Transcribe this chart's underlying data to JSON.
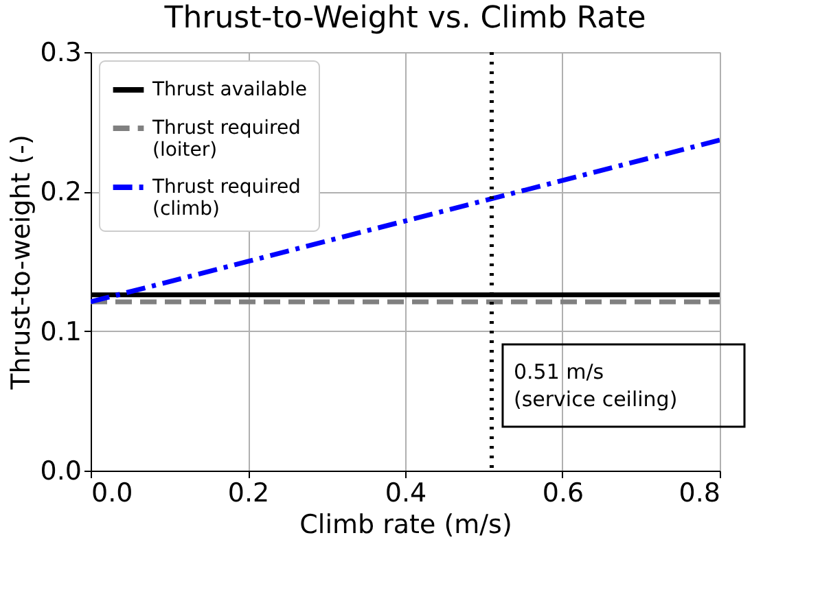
{
  "chart_data": {
    "type": "line",
    "title": "Thrust-to-Weight vs. Climb Rate",
    "xlabel": "Climb rate (m/s)",
    "ylabel": "Thrust-to-weight (-)",
    "x": [
      0,
      0.8
    ],
    "series": [
      {
        "name": "Thrust available",
        "color": "#000000",
        "values": [
          0.126,
          0.126
        ],
        "line_style": "solid"
      },
      {
        "name": "Thrust required\n(loiter)",
        "color": "#808080",
        "values": [
          0.121,
          0.121
        ],
        "line_style": "dashed"
      },
      {
        "name": "Thrust required\n(climb)",
        "color": "#0000ff",
        "values": [
          0.121,
          0.237
        ],
        "line_style": "dashdot"
      }
    ],
    "xlim": [
      0,
      0.8
    ],
    "xticks": [
      {
        "value": 0,
        "label": "0.0"
      },
      0.2,
      0.4,
      0.6,
      0.8
    ],
    "ylim": [
      0,
      0.3
    ],
    "yticks": [
      {
        "value": 0,
        "label": "0.0"
      },
      0.1,
      0.2,
      0.3
    ],
    "ref_lines": [
      {
        "axis": "x",
        "value": 0.51,
        "label": "0.51 m/s\n(service ceiling)",
        "color": "#000000",
        "line_style": "dotted"
      }
    ],
    "grid": true,
    "legend": "top left",
    "marker": "none"
  }
}
